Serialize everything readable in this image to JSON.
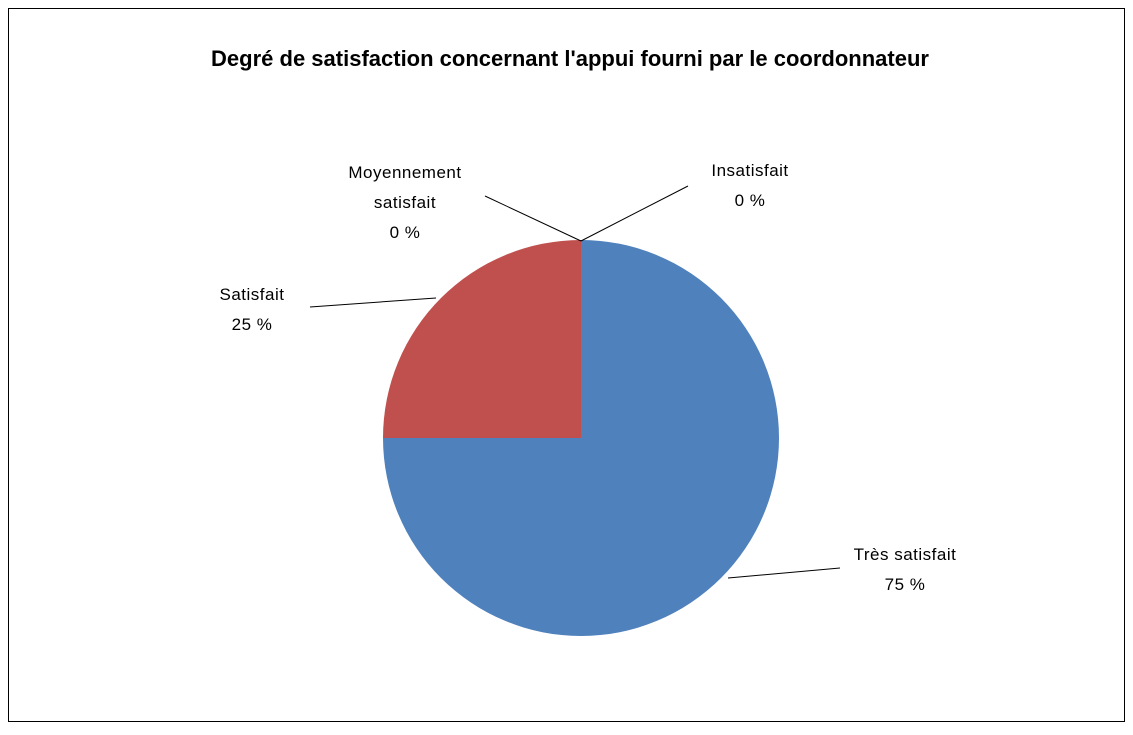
{
  "chart_data": {
    "type": "pie",
    "title": "Degré de satisfaction concernant l'appui fourni par le coordonnateur",
    "categories": [
      "Très satisfait",
      "Satisfait",
      "Moyennement satisfait",
      "Insatisfait"
    ],
    "values": [
      75,
      25,
      0,
      0
    ],
    "value_labels": [
      "75 %",
      "25 %",
      "0 %",
      "0 %"
    ],
    "colors": [
      "#4f81bd",
      "#c0504d",
      "#9bbb59",
      "#8064a2"
    ]
  }
}
